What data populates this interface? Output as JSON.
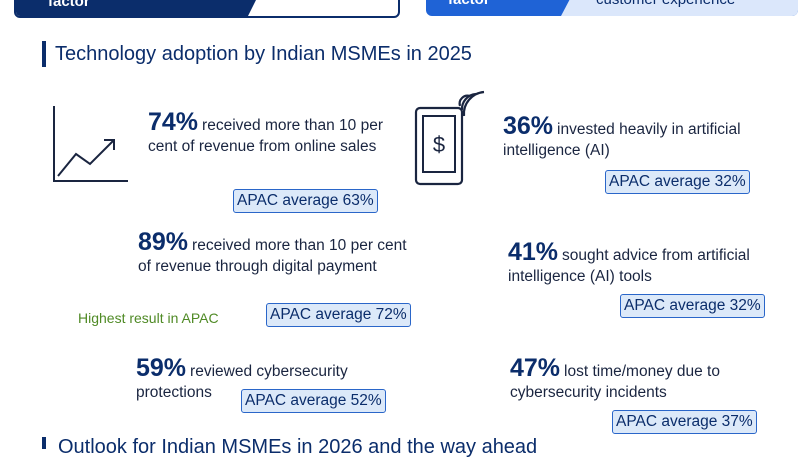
{
  "top_cards": {
    "left_label": "factor",
    "right_label": "factor",
    "right_text": "customer experience"
  },
  "section_title": "Technology adoption by Indian MSMEs in 2025",
  "next_section_title": "Outlook for Indian MSMEs in 2026 and the way ahead",
  "icons": {
    "chart": "growth-chart-icon",
    "phone": "mobile-payment-icon"
  },
  "colors": {
    "navy": "#0b2d6b",
    "accent_blue": "#1f63d6",
    "badge_fill": "#dce9f9",
    "highlight_green": "#4f8a25"
  },
  "chart_data": {
    "type": "table",
    "items": [
      {
        "pct": "74%",
        "value": 74,
        "text": "received more than 10 per cent of revenue from online sales",
        "apac_label": "APAC average 63%",
        "apac": 63
      },
      {
        "pct": "36%",
        "value": 36,
        "text": "invested heavily in artificial intelligence (AI)",
        "apac_label": "APAC average 32%",
        "apac": 32
      },
      {
        "pct": "89%",
        "value": 89,
        "text": "received more than 10 per cent of revenue through digital payment",
        "apac_label": "APAC average 72%",
        "apac": 72,
        "note": "Highest result in APAC"
      },
      {
        "pct": "41%",
        "value": 41,
        "text": "sought advice from artificial intelligence (AI) tools",
        "apac_label": "APAC average 32%",
        "apac": 32
      },
      {
        "pct": "59%",
        "value": 59,
        "text": "reviewed cybersecurity protections",
        "apac_label": "APAC average 52%",
        "apac": 52
      },
      {
        "pct": "47%",
        "value": 47,
        "text": "lost time/money due to cybersecurity incidents",
        "apac_label": "APAC average 37%",
        "apac": 37
      }
    ]
  }
}
